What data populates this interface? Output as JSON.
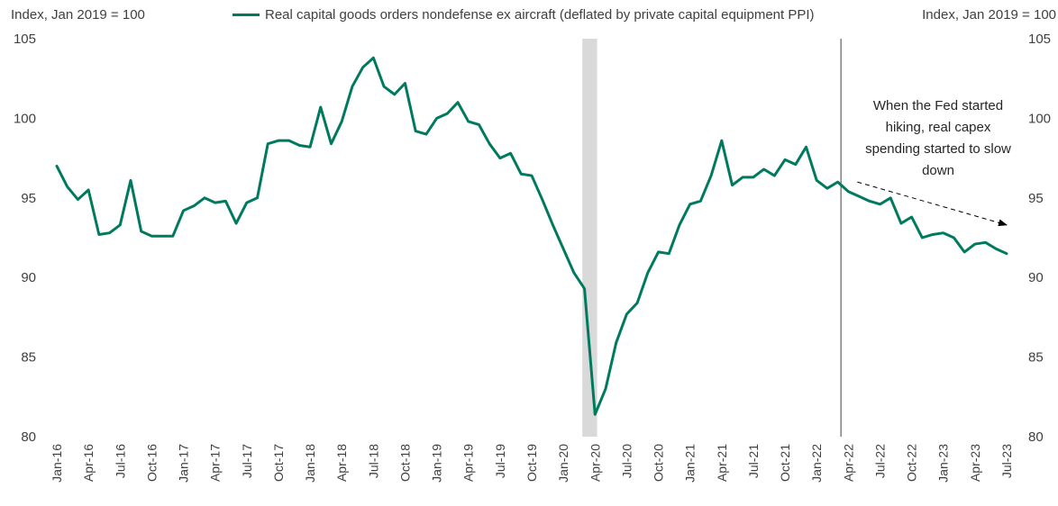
{
  "chart_data": {
    "type": "line",
    "title": "",
    "ylabel_left": "Index, Jan 2019 = 100",
    "ylabel_right": "Index, Jan 2019 = 100",
    "ylim": [
      80,
      105
    ],
    "yticks": [
      80,
      85,
      90,
      95,
      100,
      105
    ],
    "x_tick_labels": [
      "Jan-16",
      "Apr-16",
      "Jul-16",
      "Oct-16",
      "Jan-17",
      "Apr-17",
      "Jul-17",
      "Oct-17",
      "Jan-18",
      "Apr-18",
      "Jul-18",
      "Oct-18",
      "Jan-19",
      "Apr-19",
      "Jul-19",
      "Oct-19",
      "Jan-20",
      "Apr-20",
      "Jul-20",
      "Oct-20",
      "Jan-21",
      "Apr-21",
      "Jul-21",
      "Oct-21",
      "Jan-22",
      "Apr-22",
      "Jul-22",
      "Oct-22",
      "Jan-23",
      "Apr-23",
      "Jul-23"
    ],
    "start_month": "Jan-16",
    "series": [
      {
        "name": "Real capital goods orders nondefense ex aircraft (deflated by private capital equipment PPI)",
        "color": "#007A5E",
        "values": [
          97.0,
          95.7,
          94.9,
          95.5,
          92.7,
          92.8,
          93.3,
          96.1,
          92.9,
          92.6,
          92.6,
          92.6,
          94.2,
          94.5,
          95.0,
          94.7,
          94.8,
          93.4,
          94.7,
          95.0,
          98.4,
          98.6,
          98.6,
          98.3,
          98.2,
          100.7,
          98.4,
          99.8,
          102.0,
          103.2,
          103.8,
          102.0,
          101.5,
          102.2,
          99.2,
          99.0,
          100.0,
          100.3,
          101.0,
          99.8,
          99.6,
          98.4,
          97.5,
          97.8,
          96.5,
          96.4,
          94.9,
          93.3,
          91.8,
          90.3,
          89.3,
          81.4,
          83.0,
          85.9,
          87.7,
          88.4,
          90.3,
          91.6,
          91.5,
          93.3,
          94.6,
          94.8,
          96.4,
          98.6,
          95.8,
          96.3,
          96.3,
          96.8,
          96.4,
          97.4,
          97.1,
          98.2,
          96.1,
          95.6,
          96.0,
          95.4,
          95.1,
          94.8,
          94.6,
          95.0,
          93.4,
          93.8,
          92.5,
          92.7,
          92.8,
          92.5,
          91.6,
          92.1,
          92.2,
          91.8,
          91.5
        ]
      }
    ],
    "shaded_recession": {
      "from_index": 50,
      "to_index": 51
    },
    "vertical_marker_index": 74,
    "annotation_text": "When the Fed started hiking, real capex spending started to slow down",
    "trend_arrow": {
      "from": [
        75,
        96.0
      ],
      "to": [
        90,
        93.3
      ]
    },
    "colors": {
      "series": "#007A5E",
      "shade": "#D9D9D9",
      "marker_line": "#404040",
      "axis_text": "#404040"
    }
  }
}
